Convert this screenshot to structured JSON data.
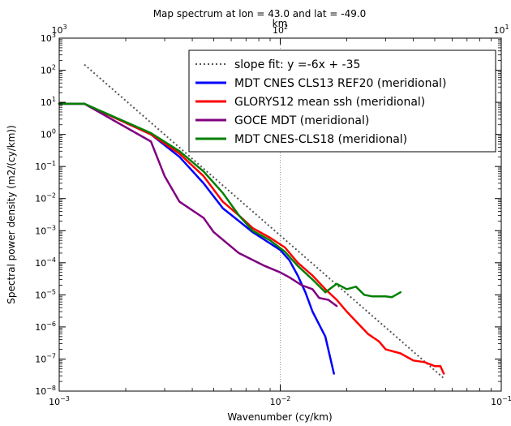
{
  "chart_data": {
    "type": "line",
    "title": "Map spectrum at lon = 43.0 and lat = -49.0",
    "xlabel": "Wavenumber (cy/km)",
    "ylabel": "Spectral power density (m2/(cy/km))",
    "top_xlabel": "km",
    "xscale": "log",
    "yscale": "log",
    "xlim": [
      0.001,
      0.1
    ],
    "ylim": [
      1e-08,
      1000
    ],
    "x_ticks": [
      {
        "value": 0.001,
        "base": "10",
        "exp": "−3"
      },
      {
        "value": 0.01,
        "base": "10",
        "exp": "−2"
      },
      {
        "value": 0.1,
        "base": "10",
        "exp": "−1"
      }
    ],
    "top_ticks": [
      {
        "value": 0.001,
        "base": "10",
        "exp": "3"
      },
      {
        "value": 0.01,
        "base": "10",
        "exp": "2"
      },
      {
        "value": 0.1,
        "base": "10",
        "exp": "1"
      }
    ],
    "y_ticks": [
      {
        "value": 1e-08,
        "base": "10",
        "exp": "−8"
      },
      {
        "value": 1e-07,
        "base": "10",
        "exp": "−7"
      },
      {
        "value": 1e-06,
        "base": "10",
        "exp": "−6"
      },
      {
        "value": 1e-05,
        "base": "10",
        "exp": "−5"
      },
      {
        "value": 0.0001,
        "base": "10",
        "exp": "−4"
      },
      {
        "value": 0.001,
        "base": "10",
        "exp": "−3"
      },
      {
        "value": 0.01,
        "base": "10",
        "exp": "−2"
      },
      {
        "value": 0.1,
        "base": "10",
        "exp": "−1"
      },
      {
        "value": 1,
        "base": "10",
        "exp": "0"
      },
      {
        "value": 10,
        "base": "10",
        "exp": "1"
      },
      {
        "value": 100,
        "base": "10",
        "exp": "2"
      },
      {
        "value": 1000,
        "base": "10",
        "exp": "3"
      }
    ],
    "vline_x": 0.01,
    "legend_position": "top-right",
    "fit_line": {
      "name": "slope fit: y =-6x + -35",
      "color": "#555555",
      "style": "dotted",
      "points": [
        [
          0.0013,
          150
        ],
        [
          0.055,
          2.5e-08
        ]
      ]
    },
    "series": [
      {
        "name": "MDT CNES CLS13 REF20 (meridional)",
        "color": "#0000ff",
        "points": [
          [
            0.001,
            9
          ],
          [
            0.0013,
            9
          ],
          [
            0.0026,
            1
          ],
          [
            0.0035,
            0.2
          ],
          [
            0.0045,
            0.03
          ],
          [
            0.0055,
            0.005
          ],
          [
            0.0065,
            0.002
          ],
          [
            0.0075,
            0.0009
          ],
          [
            0.009,
            0.0004
          ],
          [
            0.01,
            0.00025
          ],
          [
            0.011,
            0.00012
          ],
          [
            0.012,
            4e-05
          ],
          [
            0.013,
            1.2e-05
          ],
          [
            0.014,
            3e-06
          ],
          [
            0.016,
            5e-07
          ],
          [
            0.0175,
            3.5e-08
          ]
        ]
      },
      {
        "name": "GLORYS12 mean ssh (meridional)",
        "color": "#ff0000",
        "points": [
          [
            0.001,
            9
          ],
          [
            0.0013,
            9
          ],
          [
            0.0026,
            1
          ],
          [
            0.0035,
            0.25
          ],
          [
            0.0045,
            0.05
          ],
          [
            0.0055,
            0.008
          ],
          [
            0.0065,
            0.003
          ],
          [
            0.0075,
            0.0012
          ],
          [
            0.009,
            0.0006
          ],
          [
            0.0105,
            0.0003
          ],
          [
            0.012,
            0.0001
          ],
          [
            0.014,
            4e-05
          ],
          [
            0.016,
            1.5e-05
          ],
          [
            0.018,
            7e-06
          ],
          [
            0.02,
            3e-06
          ],
          [
            0.022,
            1.5e-06
          ],
          [
            0.025,
            6e-07
          ],
          [
            0.028,
            3.5e-07
          ],
          [
            0.03,
            2e-07
          ],
          [
            0.035,
            1.5e-07
          ],
          [
            0.04,
            9e-08
          ],
          [
            0.045,
            8e-08
          ],
          [
            0.05,
            6e-08
          ],
          [
            0.053,
            6e-08
          ],
          [
            0.055,
            3.5e-08
          ]
        ]
      },
      {
        "name": "GOCE MDT (meridional)",
        "color": "#800080",
        "points": [
          [
            0.001,
            9
          ],
          [
            0.0013,
            9
          ],
          [
            0.0026,
            0.6
          ],
          [
            0.003,
            0.05
          ],
          [
            0.0035,
            0.008
          ],
          [
            0.0045,
            0.0025
          ],
          [
            0.005,
            0.0009
          ],
          [
            0.0065,
            0.0002
          ],
          [
            0.0085,
            8e-05
          ],
          [
            0.01,
            5e-05
          ],
          [
            0.011,
            3.5e-05
          ],
          [
            0.0125,
            2e-05
          ],
          [
            0.014,
            1.5e-05
          ],
          [
            0.015,
            8e-06
          ],
          [
            0.0165,
            7e-06
          ],
          [
            0.018,
            4.5e-06
          ]
        ]
      },
      {
        "name": "MDT CNES-CLS18 (meridional)",
        "color": "#008000",
        "points": [
          [
            0.001,
            9
          ],
          [
            0.0013,
            9
          ],
          [
            0.0026,
            1.1
          ],
          [
            0.0035,
            0.3
          ],
          [
            0.0045,
            0.07
          ],
          [
            0.0055,
            0.015
          ],
          [
            0.0065,
            0.003
          ],
          [
            0.0075,
            0.001
          ],
          [
            0.009,
            0.0005
          ],
          [
            0.0105,
            0.00022
          ],
          [
            0.012,
            8e-05
          ],
          [
            0.014,
            3e-05
          ],
          [
            0.016,
            1.2e-05
          ],
          [
            0.018,
            2.2e-05
          ],
          [
            0.02,
            1.5e-05
          ],
          [
            0.022,
            1.8e-05
          ],
          [
            0.024,
            1e-05
          ],
          [
            0.026,
            9e-06
          ],
          [
            0.028,
            9e-06
          ],
          [
            0.03,
            9e-06
          ],
          [
            0.032,
            8.5e-06
          ],
          [
            0.035,
            1.2e-05
          ]
        ]
      }
    ]
  }
}
